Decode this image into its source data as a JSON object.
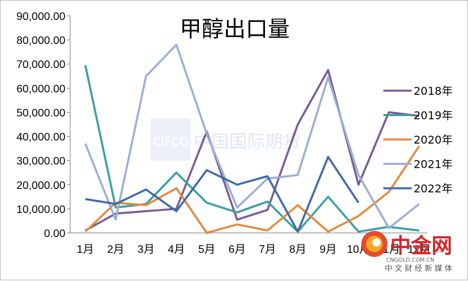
{
  "chart_data": {
    "type": "line",
    "title": "甲醇出口量",
    "xlabel": "",
    "ylabel": "",
    "categories": [
      "1月",
      "2月",
      "3月",
      "4月",
      "5月",
      "6月",
      "7月",
      "8月",
      "9月",
      "10月",
      "11月",
      "12月"
    ],
    "ylim": [
      0,
      90000
    ],
    "yticks": [
      "0.00",
      "10,000.00",
      "20,000.00",
      "30,000.00",
      "40,000.00",
      "50,000.00",
      "60,000.00",
      "70,000.00",
      "80,000.00",
      "90,000.00"
    ],
    "grid": false,
    "legend_position": "right",
    "series": [
      {
        "name": "2018年",
        "color": "#7a5c94",
        "values": [
          1000,
          8000,
          9000,
          10000,
          42000,
          5500,
          9500,
          45000,
          67500,
          20000,
          50000,
          48500
        ]
      },
      {
        "name": "2019年",
        "color": "#3c9ea6",
        "values": [
          69500,
          10500,
          12000,
          25000,
          12500,
          8500,
          13000,
          500,
          15000,
          500,
          2500,
          1000
        ]
      },
      {
        "name": "2020年",
        "color": "#e38a3f",
        "values": [
          500,
          12500,
          11500,
          18500,
          0,
          3500,
          1000,
          11500,
          500,
          7000,
          17000,
          36000
        ]
      },
      {
        "name": "2021年",
        "color": "#9aafd4",
        "values": [
          37000,
          5500,
          65000,
          78000,
          41000,
          10500,
          22500,
          24000,
          64500,
          24000,
          2000,
          12000
        ]
      },
      {
        "name": "2022年",
        "color": "#3f6aa6",
        "values": [
          14000,
          12000,
          18000,
          9000,
          26000,
          20000,
          23500,
          500,
          31500,
          12500,
          null,
          null
        ]
      }
    ]
  },
  "watermark": {
    "cifco_text": "CIFCO",
    "cifco_cn_text": "中国国际期货",
    "cngold_cn": "中金网",
    "cngold_domain": "CNGOLD.COM.CN",
    "cngold_slogan": "中 文 财 经 新 媒 体",
    "brand_color": "#d0262c"
  }
}
